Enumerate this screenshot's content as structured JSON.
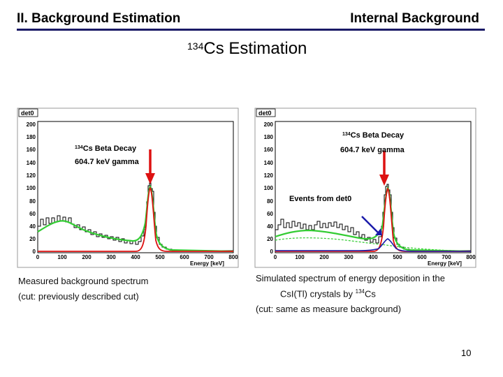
{
  "header": {
    "left": "II. Background Estimation",
    "right": "Internal Background",
    "title_sup": "134",
    "title_main": "Cs Estimation"
  },
  "plots": [
    {
      "stat_label": "det0",
      "y_ticks": [
        "0",
        "20",
        "40",
        "60",
        "80",
        "100",
        "120",
        "140",
        "160",
        "180",
        "200"
      ],
      "x_ticks": [
        "0",
        "100",
        "200",
        "300",
        "400",
        "500",
        "600",
        "700",
        "800"
      ],
      "x_axis_label": "Energy [keV]",
      "ann1_sup": "134",
      "ann1_main": "Cs Beta Decay",
      "ann2": "604.7 keV gamma"
    },
    {
      "stat_label": "det0",
      "y_ticks": [
        "0",
        "20",
        "40",
        "60",
        "80",
        "100",
        "120",
        "140",
        "160",
        "180",
        "200"
      ],
      "x_ticks": [
        "0",
        "100",
        "200",
        "300",
        "400",
        "500",
        "600",
        "700",
        "800"
      ],
      "x_axis_label": "Energy [keV]",
      "ann1_sup": "134",
      "ann1_main": "Cs Beta Decay",
      "ann2": "604.7 keV gamma",
      "ann3": "Events from det0"
    }
  ],
  "captions": {
    "left_line1": "Measured background spectrum",
    "left_line2": "(cut: previously described cut)",
    "right_line1": "Simulated spectrum of energy deposition in the",
    "right_line2_pre": "CsI(Tl) crystals by ",
    "right_line2_sup": "134",
    "right_line2_post": "Cs",
    "right_line3": "(cut: same as measure background)"
  },
  "page_number": "10",
  "colors": {
    "header_rule": "#1a1a66",
    "data_hist": "#000000",
    "fit_green": "#33cc33",
    "fit_red": "#dd1111",
    "sim_blue": "#1a1aaa",
    "arrow_red": "#dd1111",
    "arrow_blue": "#1a1aaa"
  }
}
